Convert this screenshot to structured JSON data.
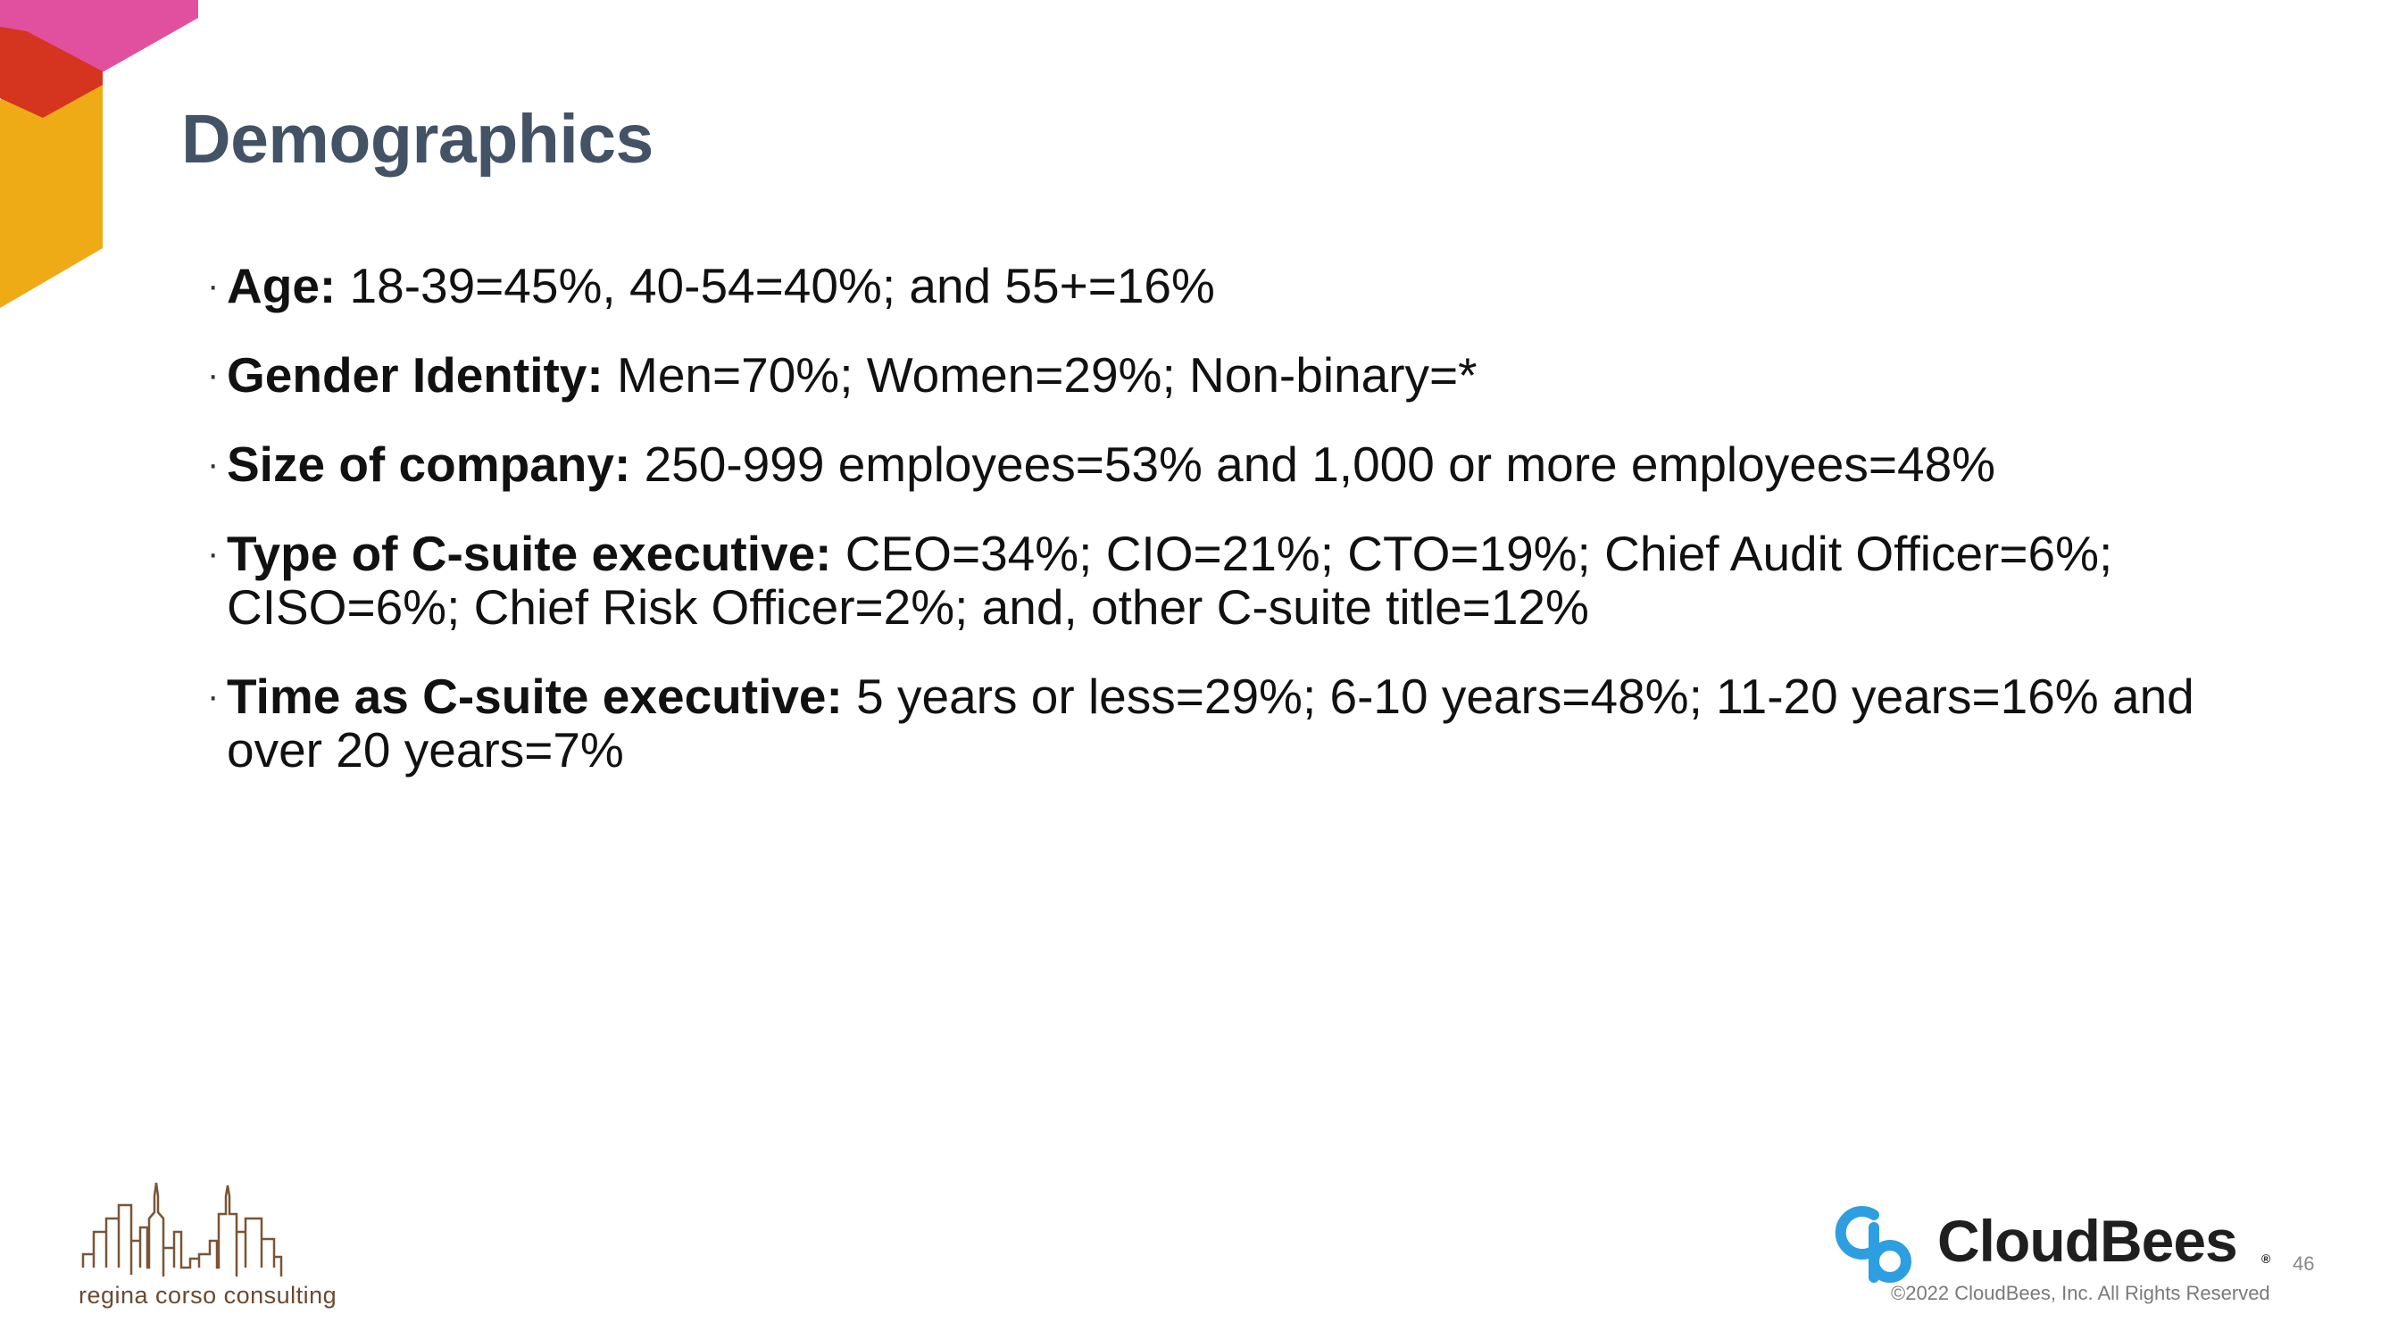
{
  "slide": {
    "title": "Demographics",
    "page_number": "46"
  },
  "bullets": [
    {
      "label": "Age:",
      "text": " 18-39=45%, 40-54=40%; and 55+=16%"
    },
    {
      "label": "Gender Identity:",
      "text": " Men=70%; Women=29%; Non-binary=*"
    },
    {
      "label": "Size of company:",
      "text": " 250-999 employees=53% and 1,000 or more employees=48%"
    },
    {
      "label": "Type of C-suite executive:",
      "text": " CEO=34%; CIO=21%; CTO=19%; Chief Audit Officer=6%; CISO=6%; Chief Risk Officer=2%; and, other C-suite title=12%"
    },
    {
      "label": "Time as C-suite executive:",
      "text": " 5 years or less=29%; 6-10 years=48%; 11-20 years=16% and over 20 years=7%"
    }
  ],
  "footer": {
    "left_logo_text": "regina corso consulting",
    "brand_name": "CloudBees",
    "brand_mark": "®",
    "copyright": "©2022 CloudBees, Inc. All Rights Reserved"
  },
  "colors": {
    "title": "#445266",
    "deco_pink": "#e0509f",
    "deco_red": "#d5341f",
    "deco_yellow": "#efab16",
    "brand_blue": "#2d9fe0"
  }
}
